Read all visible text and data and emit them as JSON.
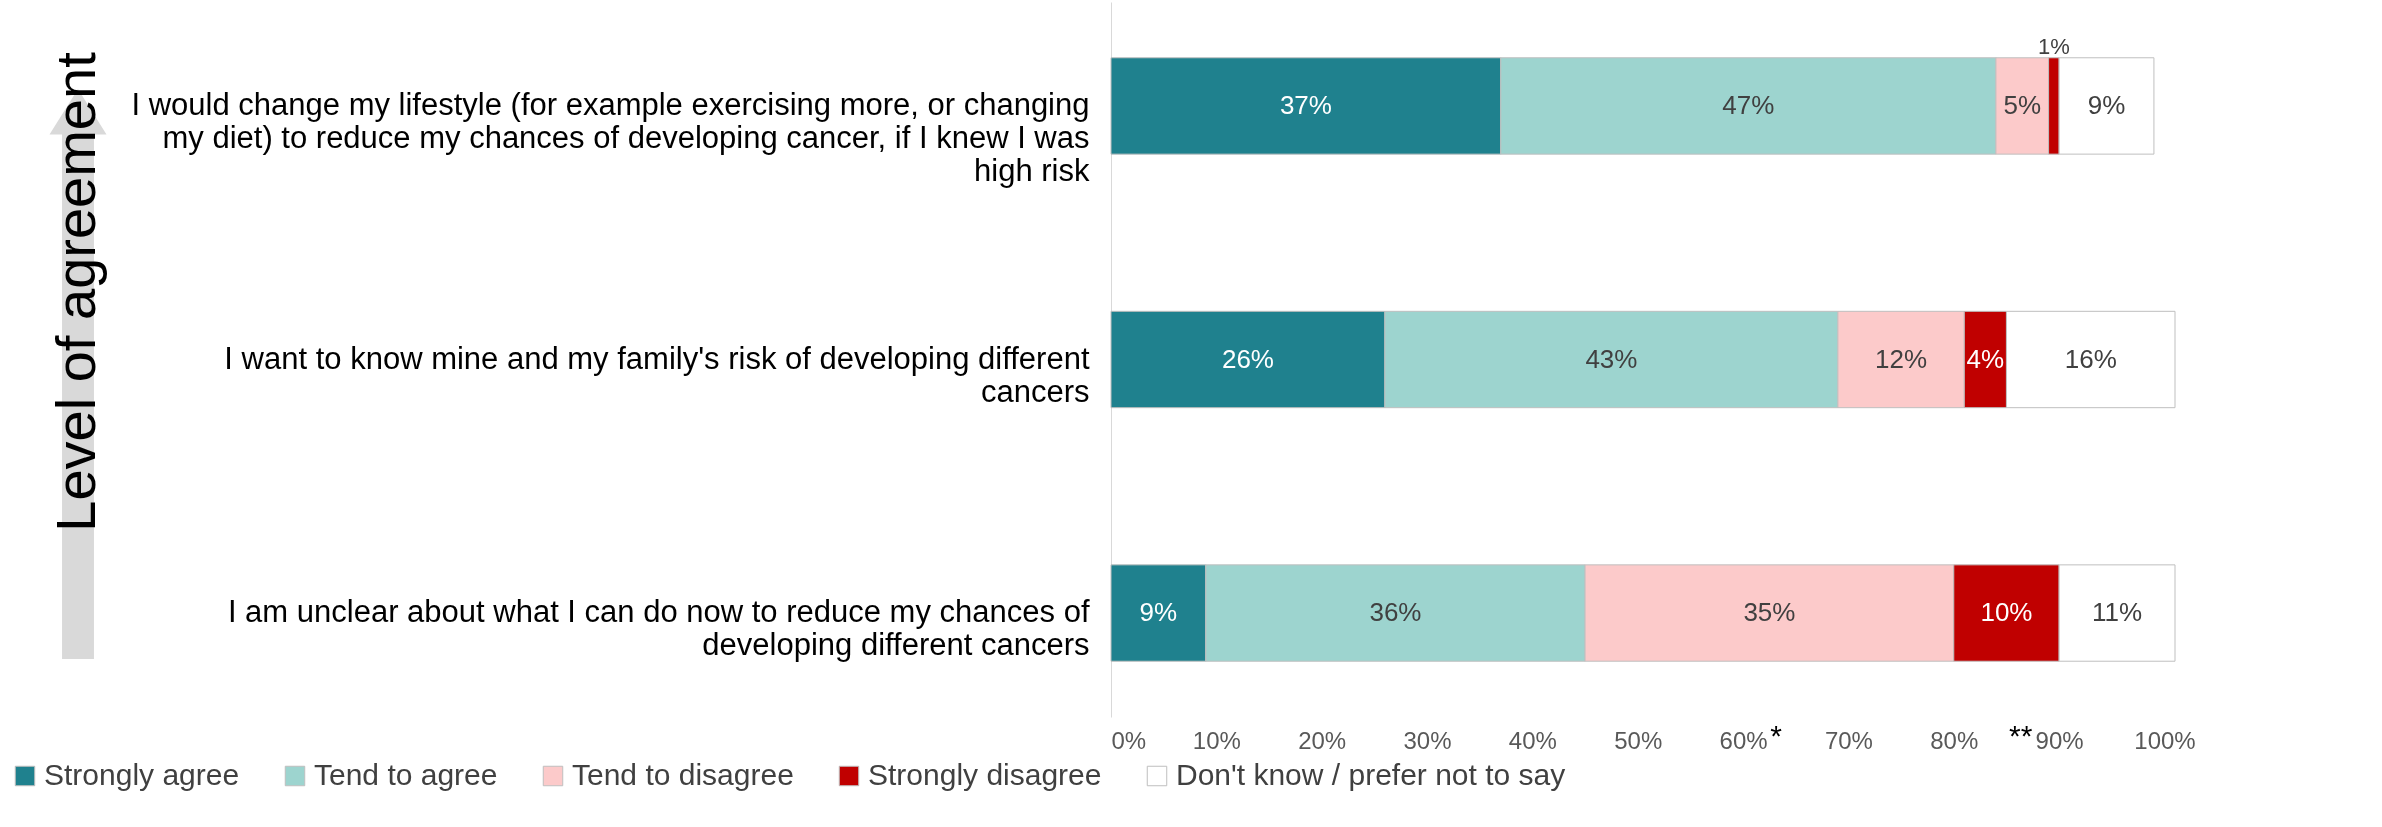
{
  "chart_data": {
    "type": "bar",
    "orientation": "horizontal",
    "stacked": true,
    "ylabel": "Level of agreement",
    "categories": [
      "I would change my lifestyle (for example exercising more, or changing my diet) to reduce my chances of developing cancer, if I knew I was high risk",
      "I want to know mine and my family's risk of developing different cancers",
      "I am unclear about what I can do now to reduce my chances of developing different cancers"
    ],
    "series": [
      {
        "name": "Strongly agree",
        "color": "#1f818e",
        "values": [
          37,
          26,
          9
        ]
      },
      {
        "name": "Tend to agree",
        "color": "#9dd4cf",
        "values": [
          47,
          43,
          36
        ]
      },
      {
        "name": "Tend to disagree",
        "color": "#fccaca",
        "values": [
          5,
          12,
          35
        ]
      },
      {
        "name": "Strongly disagree",
        "color": "#c00000",
        "values": [
          1,
          4,
          10
        ]
      },
      {
        "name": "Don't know / prefer not to say",
        "color": "#ffffff",
        "values": [
          9,
          16,
          11
        ]
      }
    ],
    "value_labels": [
      [
        "37%",
        "26%",
        "9%"
      ],
      [
        "47%",
        "43%",
        "36%"
      ],
      [
        "5%",
        "12%",
        "35%"
      ],
      [
        "1%",
        "4%",
        "10%"
      ],
      [
        "9%",
        "16%",
        "11%"
      ]
    ],
    "xlim": [
      0,
      101
    ],
    "xticks": [
      {
        "value": 0,
        "label": "0%"
      },
      {
        "value": 10,
        "label": "10%"
      },
      {
        "value": 20,
        "label": "20%"
      },
      {
        "value": 30,
        "label": "30%"
      },
      {
        "value": 40,
        "label": "40%"
      },
      {
        "value": 50,
        "label": "50%"
      },
      {
        "value": 60,
        "label": "60%"
      },
      {
        "value": 70,
        "label": "70%"
      },
      {
        "value": 80,
        "label": "80%"
      },
      {
        "value": 90,
        "label": "90%"
      },
      {
        "value": 100,
        "label": "100%"
      }
    ],
    "annotations": [
      "*",
      "**"
    ],
    "grid": false,
    "legend": "bottom"
  }
}
